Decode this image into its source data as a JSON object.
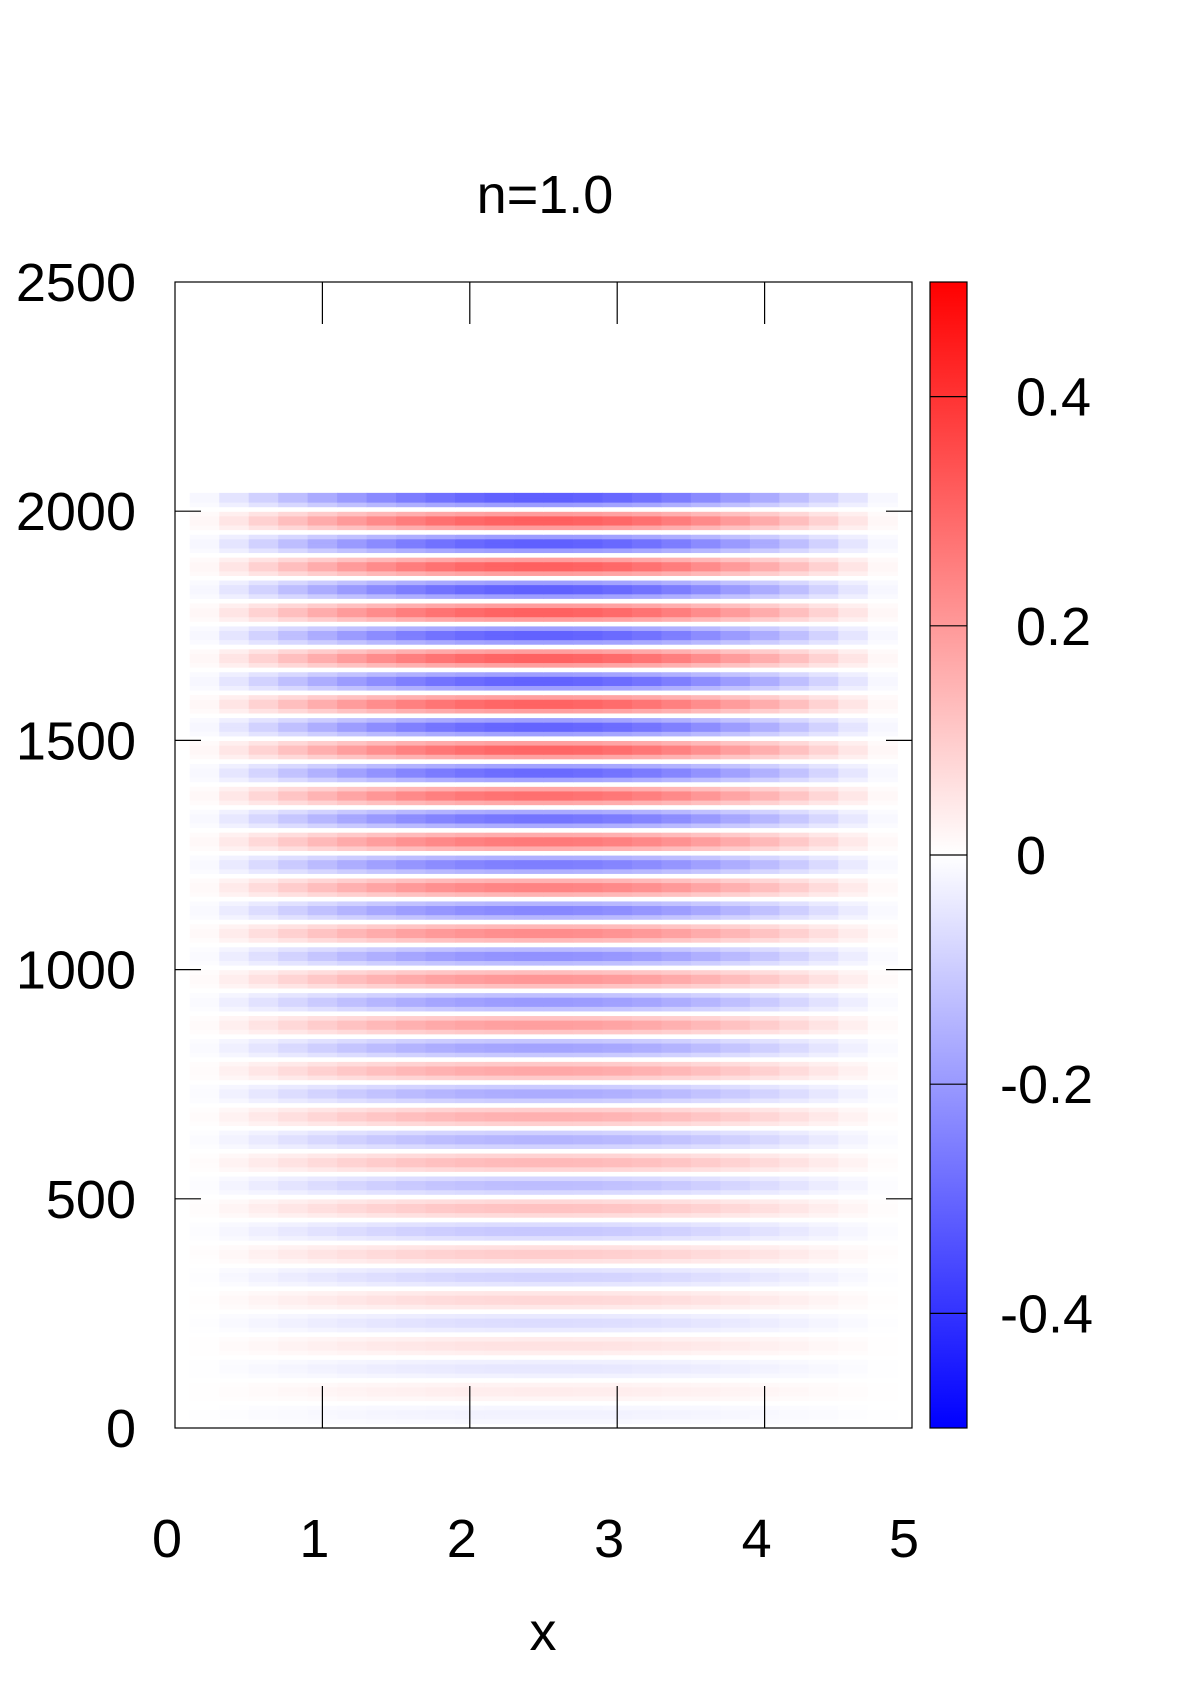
{
  "chart_data": {
    "type": "heatmap",
    "title": "n=1.0",
    "xlabel": "x",
    "ylabel": "",
    "xlim": [
      0,
      5
    ],
    "ylim": [
      0,
      2500
    ],
    "x_ticks": [
      "0",
      "1",
      "2",
      "3",
      "4",
      "5"
    ],
    "y_ticks": [
      "0",
      "500",
      "1000",
      "1500",
      "2000",
      "2500"
    ],
    "colorbar": {
      "range": [
        -0.5,
        0.5
      ],
      "ticks": [
        "-0.4",
        "-0.2",
        "0",
        "0.2",
        "0.4"
      ],
      "tick_values": [
        -0.4,
        -0.2,
        0,
        0.2,
        0.4
      ],
      "colors": {
        "min": "#0000ff",
        "mid": "#ffffff",
        "max": "#ff0000"
      }
    },
    "grid": false,
    "data_x_extent": [
      0.1,
      4.9
    ],
    "data_y_extent": [
      0,
      2040
    ],
    "band_period": 100,
    "pattern": "horizontal bands alternating red (positive) and blue (negative), strongest near x=2.5 and y=1300-2000, fading toward x edges and toward y=0",
    "band_centers_negative": [
      30,
      130,
      230,
      330,
      430,
      530,
      630,
      730,
      830,
      930,
      1030,
      1130,
      1230,
      1330,
      1430,
      1530,
      1630,
      1730,
      1830,
      1930,
      2030
    ],
    "band_centers_positive": [
      80,
      180,
      280,
      380,
      480,
      580,
      680,
      780,
      880,
      980,
      1080,
      1180,
      1280,
      1380,
      1480,
      1580,
      1680,
      1780,
      1880,
      1980
    ],
    "band_peak_amplitude_by_y": [
      [
        0,
        0.02
      ],
      [
        500,
        0.13
      ],
      [
        1000,
        0.22
      ],
      [
        1500,
        0.32
      ],
      [
        2000,
        0.33
      ],
      [
        2040,
        0.33
      ]
    ]
  }
}
